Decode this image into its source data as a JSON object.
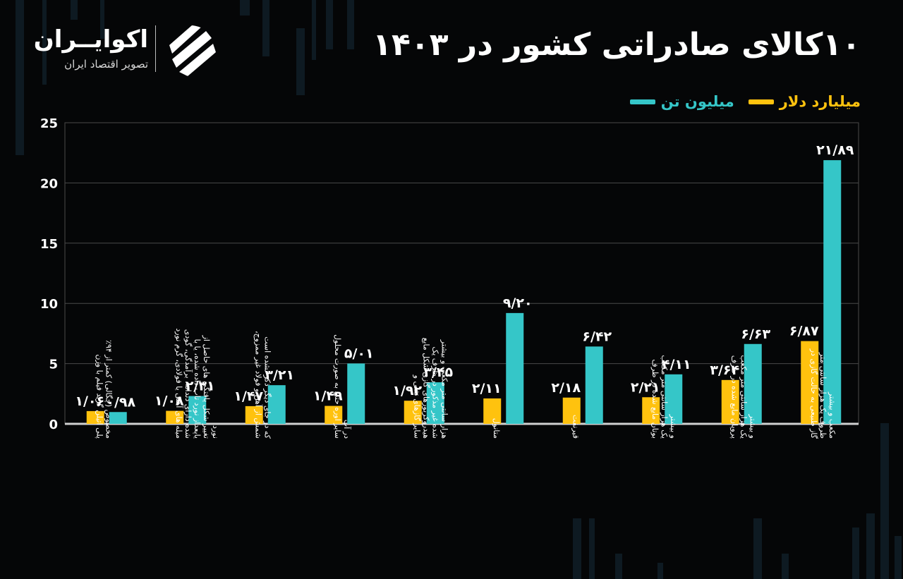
{
  "title": "۱۰کالای صادراتی کشور در ۱۴۰۳",
  "logo": {
    "name": "اکوایــران",
    "subtitle": "تصویر اقتصاد ایران",
    "icon": "stripes-circle-logo"
  },
  "colors": {
    "background": "#050607",
    "dollar": "#ffc20e",
    "ton": "#35c6c8",
    "grid": "#4a4a4a",
    "axis": "#d0d0d0"
  },
  "legend": {
    "ton": "میلیون تن",
    "dollar": "میلیارد دلار"
  },
  "chart_data": {
    "type": "bar",
    "title": "۱۰کالای صادراتی کشور در ۱۴۰۳",
    "xlabel": "",
    "ylabel": "",
    "ylim": [
      0,
      25
    ],
    "yticks": [
      "0",
      "5",
      "10",
      "15",
      "20",
      "25"
    ],
    "grid": true,
    "legend_position": "top-right",
    "categories": [
      [
        "پلی اتیلن گرید فیلم با وزن",
        "مخصوص (چگالی) کمتر از ۹۴٪"
      ],
      [
        "میله های آهنی یا فولادی، گرم نورد",
        "شده دارای دندانه، برآمدگی، گودی",
        "یاپعداز نورد تاب داده شده، یا با",
        "تغییر شکل یافتگی های حاصل از",
        "نورد"
      ],
      [
        "شمش از آهن و فولاد غیر ممزوج،",
        "که در جای دیگر ذکر نشده است"
      ],
      [
        "سایر اوره حتی به صورت محلول",
        "در آب"
      ],
      [
        "سایر گازهای نفتی و",
        "هیدروکربورهای گازی شکل مایع",
        "شده غیر مذکور در ظرف یک",
        "هزار سانتی متر مکعب و بیشتر"
      ],
      [
        "متانول"
      ],
      [
        "قیرنفت"
      ],
      [
        "بوتان مایع شده در ظرف",
        "یک هزار سانتی متر مکعب",
        "و بیشتر"
      ],
      [
        "پروپان مایع شده در ظرف",
        "یک هزار سانتی متر مکعب",
        "و بیشتر"
      ],
      [
        "گاز طبیعی به حالت گازی در",
        "ظروف یک هزار سانتی متر",
        "مکعب و بیشتر"
      ]
    ],
    "series": [
      {
        "name": "میلیارد دلار",
        "color": "#ffc20e",
        "values": [
          1.06,
          1.08,
          1.47,
          1.49,
          1.92,
          2.11,
          2.18,
          2.21,
          3.64,
          6.87
        ],
        "labels": [
          "۱/۰۶",
          "۱/۰۸",
          "۱/۴۷",
          "۱/۴۹",
          "۱/۹۲",
          "۲/۱۱",
          "۲/۱۸",
          "۲/۲۱",
          "۳/۶۴",
          "۶/۸۷"
        ]
      },
      {
        "name": "میلیون تن",
        "color": "#35c6c8",
        "values": [
          0.98,
          2.31,
          3.21,
          5.01,
          3.45,
          9.2,
          6.42,
          4.11,
          6.63,
          21.89
        ],
        "labels": [
          "۰/۹۸",
          "۲/۳۱",
          "۳/۲۱",
          "۵/۰۱",
          "۳/۴۵",
          "۹/۲۰",
          "۶/۴۲",
          "۴/۱۱",
          "۶/۶۳",
          "۲۱/۸۹"
        ]
      }
    ]
  }
}
